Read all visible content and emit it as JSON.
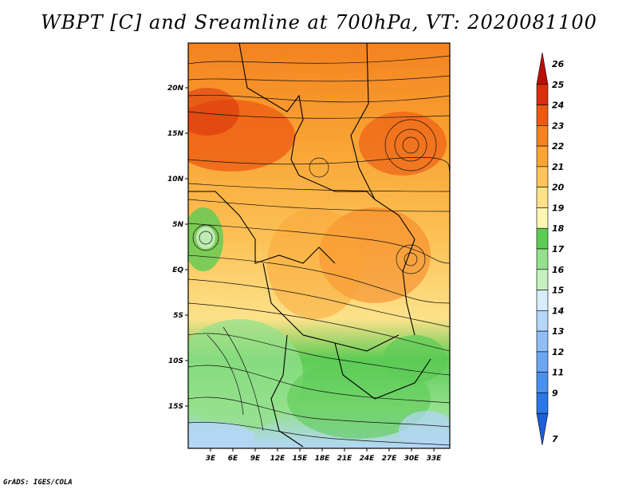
{
  "title": "WBPT [C] and Sreamline at 700hPa, VT: 2020081100",
  "credit": "GrADS: IGES/COLA",
  "map": {
    "lat_labels": [
      "20N",
      "15N",
      "10N",
      "5N",
      "EQ",
      "5S",
      "10S",
      "15S"
    ],
    "lon_labels": [
      "3E",
      "6E",
      "9E",
      "12E",
      "15E",
      "18E",
      "21E",
      "24E",
      "27E",
      "30E",
      "33E"
    ]
  },
  "colorbar": {
    "labels": [
      "7",
      "9",
      "11",
      "12",
      "13",
      "14",
      "15",
      "16",
      "17",
      "18",
      "19",
      "20",
      "21",
      "22",
      "23",
      "24",
      "25",
      "26"
    ],
    "colors": [
      "#1c5fd6",
      "#2a78e8",
      "#4a90ee",
      "#6aa6f2",
      "#8fbef6",
      "#b4d6f8",
      "#d8ecfa",
      "#c6f0c0",
      "#94e08c",
      "#5ccc55",
      "#fff6b4",
      "#fde28a",
      "#fcc45a",
      "#f9a434",
      "#f48220",
      "#ec5a12",
      "#d8300c",
      "#b81008"
    ]
  }
}
